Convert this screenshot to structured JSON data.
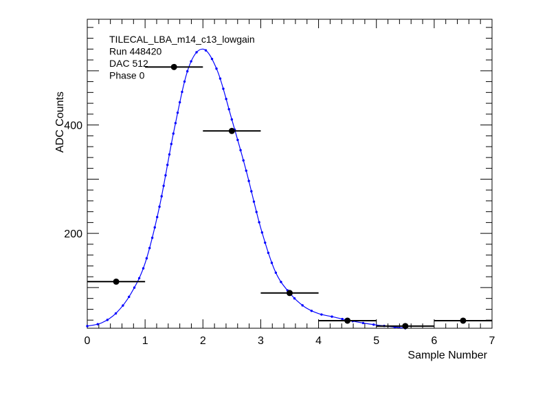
{
  "chart_data": {
    "type": "scatter",
    "annotations": [
      "TILECAL_LBA_m14_c13_lowgain",
      "Run 448420",
      "DAC 512",
      "Phase 0"
    ],
    "xlabel": "Sample Number",
    "ylabel": "ADC Counts",
    "xlim": [
      0,
      7
    ],
    "ylim": [
      25,
      595
    ],
    "x_ticks": [
      0,
      1,
      2,
      3,
      4,
      5,
      6,
      7
    ],
    "y_ticks": [
      200,
      400
    ],
    "grid": false,
    "legend": "none",
    "colors": {
      "data": "#000000",
      "fit": "#0000ff"
    },
    "series": [
      {
        "kind": "points_with_xerr",
        "x": [
          0.5,
          1.5,
          2.5,
          3.5,
          4.5,
          5.5,
          6.5
        ],
        "xerr": 0.5,
        "y": [
          111,
          507,
          389,
          90,
          39,
          29,
          39
        ]
      },
      {
        "kind": "fit_curve",
        "x": [
          0.0,
          0.25,
          0.5,
          0.75,
          1.0,
          1.25,
          1.5,
          1.75,
          2.0,
          2.25,
          2.5,
          2.75,
          3.0,
          3.25,
          3.5,
          3.75,
          4.0,
          4.25,
          4.5,
          4.75,
          5.0,
          5.25,
          5.5
        ],
        "y": [
          29,
          35,
          53,
          88,
          145,
          250,
          390,
          505,
          540,
          500,
          410,
          315,
          210,
          130,
          90,
          65,
          52,
          46,
          40,
          35,
          31,
          28,
          25
        ]
      }
    ]
  }
}
